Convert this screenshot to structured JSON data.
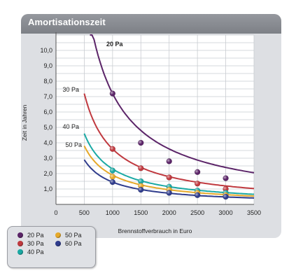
{
  "header": {
    "title": "Amortisationszeit"
  },
  "chart_data": {
    "type": "line",
    "title": "Amortisationszeit",
    "xlabel": "Brennstoffverbrauch in Euro",
    "ylabel": "Zeit in Jahren",
    "xlim": [
      0,
      3500
    ],
    "ylim": [
      0,
      11
    ],
    "x_ticks": [
      "0",
      "500",
      "1000",
      "1500",
      "2000",
      "2500",
      "3000",
      "3500"
    ],
    "y_ticks": [
      "1,0",
      "2,0",
      "3,0",
      "4,0",
      "5,0",
      "6,0",
      "7,0",
      "8,0",
      "9,0",
      "10,0"
    ],
    "grid": true,
    "series": [
      {
        "name": "20 Pa",
        "color": "#5b2468",
        "start_x": 600,
        "end_x": 3500,
        "k": 7200,
        "points": [
          [
            1000,
            7.2
          ],
          [
            1500,
            4.0
          ],
          [
            2000,
            2.8
          ],
          [
            2500,
            2.1
          ],
          [
            3000,
            1.7
          ]
        ]
      },
      {
        "name": "30 Pa",
        "color": "#c0393f",
        "start_x": 500,
        "end_x": 3500,
        "k": 3600,
        "points": [
          [
            1000,
            3.6
          ],
          [
            1500,
            2.35
          ],
          [
            2000,
            1.75
          ],
          [
            2500,
            1.35
          ],
          [
            3000,
            1.0
          ]
        ]
      },
      {
        "name": "40 Pa",
        "color": "#1aa9a4",
        "start_x": 500,
        "end_x": 3500,
        "k": 2300,
        "points": [
          [
            1000,
            2.2
          ],
          [
            1500,
            1.5
          ],
          [
            2000,
            1.15
          ],
          [
            2500,
            0.9
          ],
          [
            3000,
            0.75
          ]
        ]
      },
      {
        "name": "50 Pa",
        "color": "#e6a92a",
        "start_x": 500,
        "end_x": 3500,
        "k": 1900,
        "points": [
          [
            1000,
            1.8
          ],
          [
            1500,
            1.2
          ],
          [
            2000,
            0.95
          ],
          [
            2500,
            0.75
          ],
          [
            3000,
            0.6
          ]
        ]
      },
      {
        "name": "60 Pa",
        "color": "#2f3c8c",
        "start_x": 500,
        "end_x": 3500,
        "k": 1450,
        "points": [
          [
            1000,
            1.45
          ],
          [
            1500,
            0.95
          ],
          [
            2000,
            0.75
          ],
          [
            2500,
            0.6
          ],
          [
            3000,
            0.5
          ]
        ]
      }
    ],
    "curve_labels": [
      "20 Pa",
      "30 Pa",
      "40 Pa",
      "50 Pa"
    ],
    "legend": {
      "position": "bottom-left"
    }
  }
}
